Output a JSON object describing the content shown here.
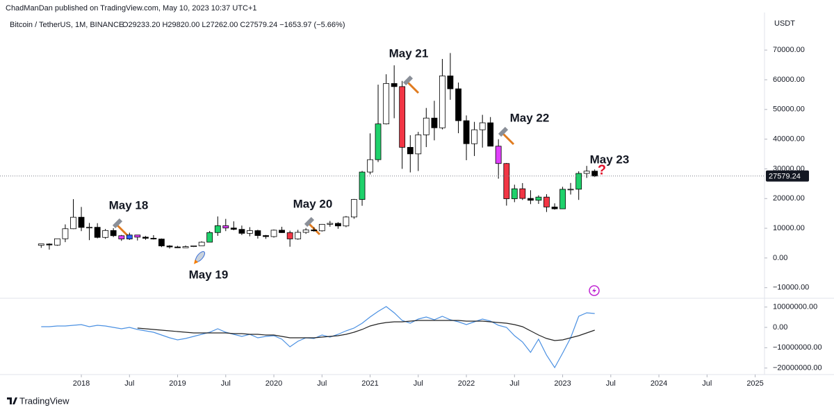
{
  "header": {
    "publisher": "ChadManDan published on TradingView.com, May 10, 2023 10:37 UTC+1",
    "symbol": "Bitcoin / TetherUS, 1M, BINANCE",
    "ohlc": "O29233.20 H29820.00 L27262.00 C27579.24 −1653.97 (−5.66%)"
  },
  "chart_data": [
    {
      "type": "candlestick",
      "y_unit": "USDT",
      "x": [
        2017.583,
        2017.667,
        2017.75,
        2017.833,
        2017.917,
        2018,
        2018.083,
        2018.167,
        2018.25,
        2018.333,
        2018.417,
        2018.5,
        2018.583,
        2018.667,
        2018.75,
        2018.833,
        2018.917,
        2019,
        2019.083,
        2019.167,
        2019.25,
        2019.333,
        2019.417,
        2019.5,
        2019.583,
        2019.667,
        2019.75,
        2019.833,
        2019.917,
        2020,
        2020.083,
        2020.167,
        2020.25,
        2020.333,
        2020.417,
        2020.5,
        2020.583,
        2020.667,
        2020.75,
        2020.833,
        2020.917,
        2021,
        2021.083,
        2021.167,
        2021.25,
        2021.333,
        2021.417,
        2021.5,
        2021.583,
        2021.667,
        2021.75,
        2021.833,
        2021.917,
        2022,
        2022.083,
        2022.167,
        2022.25,
        2022.333,
        2022.417,
        2022.5,
        2022.583,
        2022.667,
        2022.75,
        2022.833,
        2022.917,
        2023,
        2023.083,
        2023.167,
        2023.25,
        2023.333
      ],
      "open": [
        4261,
        4689,
        4341,
        6463,
        9837,
        13715,
        10285,
        10325,
        6923,
        9246,
        7494,
        6392,
        7730,
        7011,
        6626,
        6370,
        4041,
        3701,
        3434,
        3814,
        4102,
        5321,
        8555,
        10854,
        10085,
        9630,
        8293,
        9199,
        7547,
        7195,
        9352,
        8523,
        6412,
        8620,
        9448,
        9139,
        11335,
        11650,
        10777,
        13791,
        19695,
        28923,
        33092,
        45134,
        58739,
        57697,
        37253,
        35045,
        41461,
        47100,
        43820,
        61300,
        56951,
        46216,
        38466,
        43160,
        45510,
        37630,
        31801,
        19942,
        23297,
        20048,
        19423,
        20490,
        17165,
        16542,
        23126,
        23142,
        28465,
        29233.2
      ],
      "high": [
        4745,
        4939,
        6470,
        11300,
        19798,
        17176,
        11786,
        11710,
        9759,
        10020,
        7754,
        8507,
        7750,
        7410,
        7680,
        6555,
        4312,
        4069,
        4198,
        4140,
        5600,
        9074,
        13970,
        13147,
        12325,
        10905,
        10370,
        9505,
        7750,
        9578,
        10500,
        9188,
        9468,
        10080,
        10380,
        11444,
        12468,
        12050,
        14100,
        19863,
        29300,
        41950,
        58352,
        61844,
        64854,
        59600,
        41330,
        42448,
        50500,
        52920,
        67000,
        69000,
        59053,
        47990,
        45821,
        48189,
        47444,
        39980,
        31982,
        24668,
        25211,
        22799,
        21085,
        21480,
        18387,
        23960,
        25250,
        29185,
        31000,
        29820
      ],
      "low": [
        3400,
        2817,
        4110,
        5325,
        9722,
        9035,
        6000,
        6600,
        6430,
        7032,
        5750,
        6070,
        5880,
        6100,
        6205,
        3652,
        3156,
        3349,
        3400,
        3670,
        4067,
        5316,
        7444,
        9036,
        9320,
        7710,
        7300,
        6515,
        6435,
        6871,
        8445,
        3782,
        6150,
        8117,
        8833,
        8893,
        10518,
        9826,
        10374,
        13195,
        17572,
        28130,
        32296,
        44950,
        47044,
        30000,
        28805,
        29278,
        37332,
        39600,
        43283,
        53256,
        42000,
        32918,
        34322,
        37155,
        37578,
        26700,
        17622,
        18781,
        19520,
        18125,
        18190,
        15476,
        16256,
        16500,
        21351,
        19549,
        26942,
        27262
      ],
      "close": [
        4724,
        4378,
        6463,
        9838,
        13716,
        10285,
        10326,
        6923,
        9246,
        7494,
        6392,
        7730,
        7011,
        6626,
        6372,
        4041,
        3702,
        3434,
        3814,
        4103,
        5320,
        8555,
        10854,
        10085,
        9630,
        8293,
        9199,
        7546,
        7195,
        9352,
        8523,
        6410,
        8621,
        9448,
        9138,
        11335,
        11650,
        10777,
        13791,
        19695,
        28923,
        33092,
        45135,
        58740,
        57694,
        37253,
        35045,
        41461,
        47100,
        43824,
        61300,
        56951,
        46216,
        38466,
        43160,
        45510,
        37630,
        31801,
        19942,
        23293,
        20050,
        19422,
        20491,
        17163,
        16542,
        23125,
        23142,
        28465,
        29233,
        27579.24
      ],
      "colors": [
        "#ffffff",
        "#000000",
        "#ffffff",
        "#ffffff",
        "#ffffff",
        "#000000",
        "#ffffff",
        "#000000",
        "#ffffff",
        "#000000",
        "#e040fb",
        "#2962ff",
        "#e040fb",
        "#000000",
        "#000000",
        "#000000",
        "#000000",
        "#000000",
        "#ffffff",
        "#ffffff",
        "#ffffff",
        "#1fd16b",
        "#1fd16b",
        "#e040fb",
        "#000000",
        "#000000",
        "#ffffff",
        "#000000",
        "#000000",
        "#ffffff",
        "#000000",
        "#f23645",
        "#ffffff",
        "#ffffff",
        "#000000",
        "#ffffff",
        "#ffffff",
        "#000000",
        "#ffffff",
        "#ffffff",
        "#1fd16b",
        "#ffffff",
        "#1fd16b",
        "#ffffff",
        "#000000",
        "#f23645",
        "#000000",
        "#ffffff",
        "#ffffff",
        "#000000",
        "#ffffff",
        "#000000",
        "#000000",
        "#000000",
        "#ffffff",
        "#ffffff",
        "#000000",
        "#e040fb",
        "#f23645",
        "#1fd16b",
        "#f23645",
        "#000000",
        "#1fd16b",
        "#f23645",
        "#000000",
        "#1fd16b",
        "#ffffff",
        "#1fd16b",
        "#ffffff",
        "#000000"
      ],
      "xlim": [
        2017.155,
        2025.097
      ],
      "xticks": [
        2018,
        {
          "value": 2018.5,
          "label": "Jul"
        },
        2019,
        {
          "value": 2019.5,
          "label": "Jul"
        },
        2020,
        {
          "value": 2020.5,
          "label": "Jul"
        },
        2021,
        {
          "value": 2021.5,
          "label": "Jul"
        },
        2022,
        {
          "value": 2022.5,
          "label": "Jul"
        },
        2023,
        {
          "value": 2023.5,
          "label": "Jul"
        },
        2024,
        {
          "value": 2024.5,
          "label": "Jul"
        },
        2025
      ],
      "ylim": [
        -13100,
        82650
      ],
      "yticks": [
        {
          "value": -10000,
          "label": "−10000.00"
        },
        {
          "value": 0,
          "label": "0.00"
        },
        {
          "value": 10000,
          "label": "10000.00"
        },
        {
          "value": 20000,
          "label": "20000.00"
        },
        {
          "value": 30000,
          "label": "30000.00"
        },
        {
          "value": 40000,
          "label": "40000.00"
        },
        {
          "value": 50000,
          "label": "50000.00"
        },
        {
          "value": 60000,
          "label": "60000.00"
        },
        {
          "value": 70000,
          "label": "70000.00"
        }
      ],
      "last_price": 27579.24,
      "last_price_color": "#131722",
      "annotations": [
        "May 18",
        "May 19",
        "May 20",
        "May 21",
        "May 22",
        "May 23",
        "?"
      ]
    },
    {
      "type": "line",
      "x": [
        2017.583,
        2017.667,
        2017.75,
        2017.833,
        2017.917,
        2018,
        2018.083,
        2018.167,
        2018.25,
        2018.333,
        2018.417,
        2018.5,
        2018.583,
        2018.667,
        2018.75,
        2018.833,
        2018.917,
        2019,
        2019.083,
        2019.167,
        2019.25,
        2019.333,
        2019.417,
        2019.5,
        2019.583,
        2019.667,
        2019.75,
        2019.833,
        2019.917,
        2020,
        2020.083,
        2020.167,
        2020.25,
        2020.333,
        2020.417,
        2020.5,
        2020.583,
        2020.667,
        2020.75,
        2020.833,
        2020.917,
        2021,
        2021.083,
        2021.167,
        2021.25,
        2021.333,
        2021.417,
        2021.5,
        2021.583,
        2021.667,
        2021.75,
        2021.833,
        2021.917,
        2022,
        2022.083,
        2022.167,
        2022.25,
        2022.333,
        2022.417,
        2022.5,
        2022.583,
        2022.667,
        2022.75,
        2022.833,
        2022.917,
        2023,
        2023.083,
        2023.167,
        2023.25,
        2023.333
      ],
      "series": [
        {
          "color": "#4a90e2",
          "values": [
            340000,
            340000,
            680000,
            680000,
            1020000,
            1370000,
            340000,
            1020000,
            680000,
            0,
            -680000,
            0,
            -1020000,
            -1710000,
            -2390000,
            -3750000,
            -5120000,
            -6140000,
            -5460000,
            -4440000,
            -3410000,
            -2390000,
            -680000,
            -2390000,
            -3410000,
            -4440000,
            -3410000,
            -5120000,
            -4440000,
            -4100000,
            -5800000,
            -9560000,
            -6830000,
            -5120000,
            -5460000,
            -3750000,
            -4780000,
            -3410000,
            -1710000,
            -340000,
            2050000,
            5120000,
            7850000,
            10240000,
            7170000,
            3410000,
            2050000,
            4100000,
            5120000,
            3750000,
            5460000,
            3750000,
            2730000,
            1370000,
            2730000,
            4100000,
            3070000,
            1020000,
            0,
            -4100000,
            -7170000,
            -12290000,
            -5800000,
            -13650000,
            -19800000,
            -12630000,
            -5120000,
            5460000,
            7170000,
            6830000
          ]
        },
        {
          "color": "#222222",
          "values": [
            null,
            null,
            null,
            null,
            null,
            null,
            null,
            null,
            null,
            null,
            null,
            null,
            -340000,
            -680000,
            -1020000,
            -1370000,
            -1710000,
            -2050000,
            -2390000,
            -2730000,
            -2730000,
            -2730000,
            -2730000,
            -2730000,
            -3070000,
            -3070000,
            -3410000,
            -3410000,
            -3750000,
            -3750000,
            -4440000,
            -5120000,
            -5120000,
            -5120000,
            -5120000,
            -4780000,
            -4440000,
            -4100000,
            -3410000,
            -2390000,
            -1020000,
            680000,
            1710000,
            2390000,
            2730000,
            2730000,
            3070000,
            3410000,
            3410000,
            3410000,
            3410000,
            3410000,
            3410000,
            3070000,
            3070000,
            3070000,
            2730000,
            2390000,
            2050000,
            1370000,
            340000,
            -1710000,
            -3750000,
            -5460000,
            -6480000,
            -6140000,
            -5120000,
            -4100000,
            -2730000,
            -1370000
          ]
        }
      ],
      "ylim": [
        -23200000,
        13650000
      ],
      "yticks": [
        {
          "value": -20000000,
          "label": "−20000000.00"
        },
        {
          "value": -10000000,
          "label": "−10000000.00"
        },
        {
          "value": 0,
          "label": "0.00"
        },
        {
          "value": 10000000,
          "label": "10000000.00"
        }
      ]
    }
  ],
  "footer": {
    "brand": "TradingView"
  }
}
